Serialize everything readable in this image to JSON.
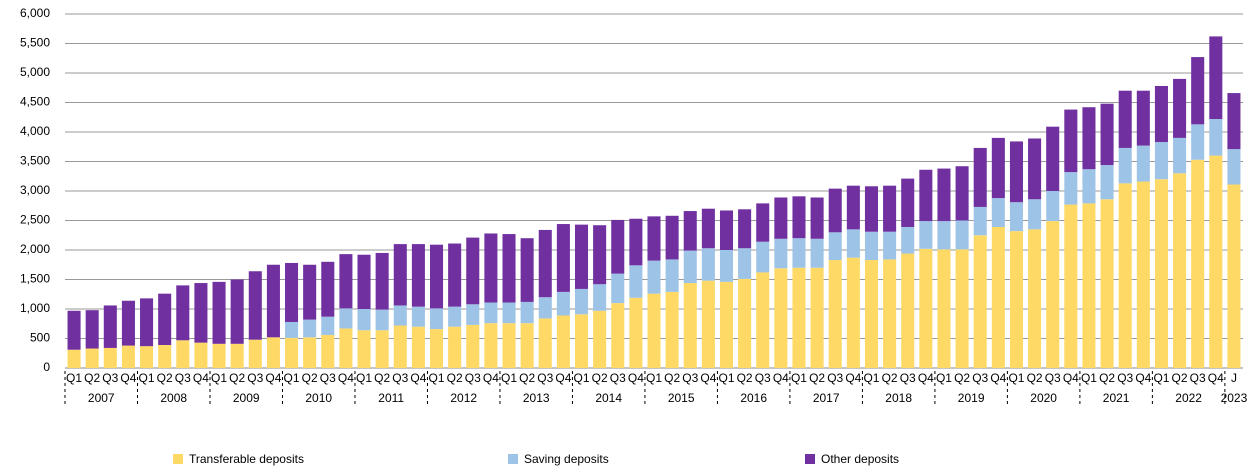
{
  "chart_data": {
    "type": "stacked_bar",
    "categories": [
      "Q1",
      "Q2",
      "Q3",
      "Q4",
      "Q1",
      "Q2",
      "Q3",
      "Q4",
      "Q1",
      "Q2",
      "Q3",
      "Q4",
      "Q1",
      "Q2",
      "Q3",
      "Q4",
      "Q1",
      "Q2",
      "Q3",
      "Q4",
      "Q1",
      "Q2",
      "Q3",
      "Q4",
      "Q1",
      "Q2",
      "Q3",
      "Q4",
      "Q1",
      "Q2",
      "Q3",
      "Q4",
      "Q1",
      "Q2",
      "Q3",
      "Q4",
      "Q1",
      "Q2",
      "Q3",
      "Q4",
      "Q1",
      "Q2",
      "Q3",
      "Q4",
      "Q1",
      "Q2",
      "Q3",
      "Q4",
      "Q1",
      "Q2",
      "Q3",
      "Q4",
      "Q1",
      "Q2",
      "Q3",
      "Q4",
      "Q1",
      "Q2",
      "Q3",
      "Q4",
      "Q1",
      "Q2",
      "Q3",
      "Q4",
      "J"
    ],
    "years": [
      "2007",
      "2008",
      "2009",
      "2010",
      "2011",
      "2012",
      "2013",
      "2014",
      "2015",
      "2016",
      "2017",
      "2018",
      "2019",
      "2020",
      "2021",
      "2022",
      "2023"
    ],
    "series": [
      {
        "name": "Transferable deposits",
        "color": "#ffd966",
        "values": [
          310,
          330,
          340,
          380,
          370,
          390,
          470,
          430,
          410,
          410,
          480,
          520,
          510,
          520,
          560,
          670,
          640,
          640,
          720,
          700,
          660,
          700,
          730,
          760,
          760,
          760,
          840,
          890,
          910,
          970,
          1100,
          1190,
          1260,
          1290,
          1440,
          1480,
          1460,
          1510,
          1620,
          1690,
          1700,
          1700,
          1830,
          1870,
          1830,
          1840,
          1940,
          2020,
          2010,
          2010,
          2250,
          2390,
          2320,
          2350,
          2490,
          2770,
          2790,
          2860,
          3130,
          3160,
          3200,
          3300,
          3530,
          3600,
          3110
        ]
      },
      {
        "name": "Saving deposits",
        "color": "#9dc3e6",
        "values": [
          0,
          0,
          0,
          0,
          0,
          0,
          0,
          0,
          0,
          0,
          0,
          0,
          270,
          300,
          310,
          340,
          360,
          350,
          340,
          340,
          350,
          340,
          350,
          350,
          350,
          360,
          360,
          400,
          430,
          450,
          500,
          550,
          560,
          550,
          550,
          550,
          540,
          520,
          520,
          500,
          500,
          490,
          470,
          480,
          480,
          470,
          450,
          470,
          480,
          490,
          480,
          490,
          490,
          510,
          510,
          550,
          580,
          580,
          600,
          610,
          630,
          600,
          600,
          620,
          600
        ]
      },
      {
        "name": "Other deposits",
        "color": "#7030a0",
        "values": [
          660,
          650,
          720,
          760,
          810,
          870,
          930,
          1010,
          1050,
          1090,
          1160,
          1230,
          1000,
          930,
          930,
          920,
          920,
          960,
          1040,
          1060,
          1080,
          1070,
          1130,
          1170,
          1160,
          1080,
          1140,
          1150,
          1090,
          1000,
          910,
          790,
          750,
          740,
          670,
          670,
          670,
          660,
          650,
          700,
          710,
          700,
          740,
          740,
          770,
          780,
          820,
          870,
          890,
          920,
          1000,
          1020,
          1030,
          1030,
          1090,
          1060,
          1050,
          1040,
          970,
          930,
          950,
          1000,
          1140,
          1400,
          950
        ]
      }
    ],
    "ylim": [
      0,
      6000
    ],
    "yticks": [
      0,
      500,
      {
        "value": 1000,
        "label": "1,000"
      },
      {
        "value": 1500,
        "label": "1,500"
      },
      {
        "value": 2000,
        "label": "2,000"
      },
      {
        "value": 2500,
        "label": "2,500"
      },
      {
        "value": 3000,
        "label": "3,000"
      },
      {
        "value": 3500,
        "label": "3,500"
      },
      {
        "value": 4000,
        "label": "4,000"
      },
      {
        "value": 4500,
        "label": "4,500"
      },
      {
        "value": 5000,
        "label": "5,000"
      },
      {
        "value": 5500,
        "label": "5,500"
      },
      {
        "value": 6000,
        "label": "6,000"
      }
    ],
    "grid": true,
    "legend": "bottom"
  }
}
